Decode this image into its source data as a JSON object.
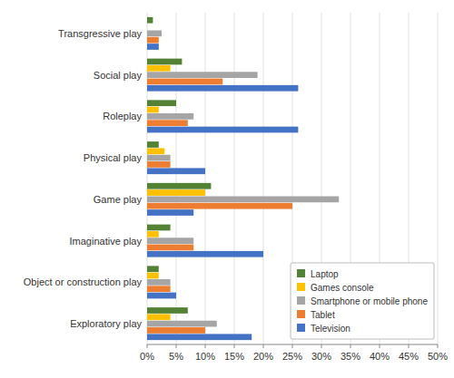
{
  "chart_data": {
    "type": "bar",
    "orientation": "horizontal",
    "categories": [
      "Transgressive play",
      "Social play",
      "Roleplay",
      "Physical play",
      "Game play",
      "Imaginative play",
      "Object or construction play",
      "Exploratory play"
    ],
    "series": [
      {
        "name": "Laptop",
        "color": "#548235",
        "values": [
          1,
          6,
          5,
          2,
          11,
          4,
          2,
          7
        ]
      },
      {
        "name": "Games console",
        "color": "#FFC000",
        "values": [
          0,
          4,
          2,
          3,
          10,
          2,
          2,
          4
        ]
      },
      {
        "name": "Smartphone or mobile phone",
        "color": "#A5A5A5",
        "values": [
          2.5,
          19,
          8,
          4,
          33,
          8,
          4,
          12
        ]
      },
      {
        "name": "Tablet",
        "color": "#ED7D31",
        "values": [
          2,
          13,
          7,
          4,
          25,
          8,
          4,
          10
        ]
      },
      {
        "name": "Television",
        "color": "#4472C4",
        "values": [
          2,
          26,
          26,
          10,
          8,
          20,
          5,
          18
        ]
      }
    ],
    "xlim": [
      0,
      50
    ],
    "xticks": [
      {
        "value": 0,
        "label": "0%"
      },
      {
        "value": 5,
        "label": "5%"
      },
      {
        "value": 10,
        "label": "10%"
      },
      {
        "value": 15,
        "label": "15%"
      },
      {
        "value": 20,
        "label": "20%"
      },
      {
        "value": 25,
        "label": "25%"
      },
      {
        "value": 30,
        "label": "30%"
      },
      {
        "value": 35,
        "label": "35%"
      },
      {
        "value": 40,
        "label": "40%"
      },
      {
        "value": 45,
        "label": "45%"
      },
      {
        "value": 50,
        "label": "50%"
      }
    ],
    "grid": true,
    "legend": "lower right"
  }
}
